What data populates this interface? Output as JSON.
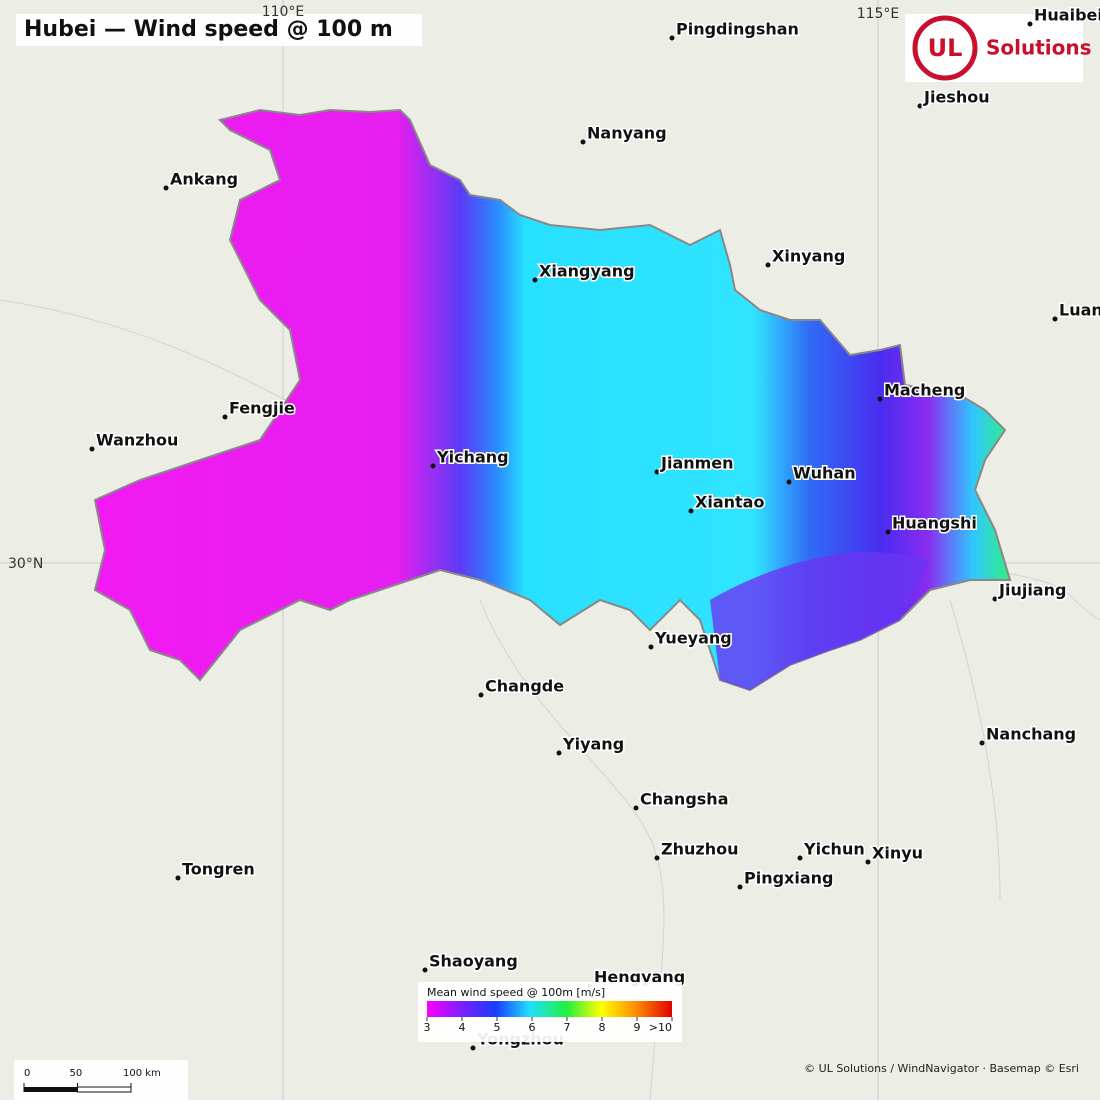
{
  "title": "Hubei — Wind speed @ 100 m",
  "graticule": {
    "lon_labels": [
      "110°E",
      "115°E"
    ],
    "lat_labels": [
      "30°N"
    ]
  },
  "logo": {
    "mark": "UL",
    "text": "Solutions"
  },
  "cities": [
    "Pingdingshan",
    "Huaibei",
    "Jieshou",
    "Nanyang",
    "Ankang",
    "Xiangyang",
    "Xinyang",
    "Luan",
    "Macheng",
    "Fengjie",
    "Wanzhou",
    "Yichang",
    "Jianmen",
    "Wuhan",
    "Xiantao",
    "Huangshi",
    "Jiujiang",
    "Yueyang",
    "Changde",
    "Yiyang",
    "Nanchang",
    "Changsha",
    "Zhuzhou",
    "Yichun",
    "Xinyu",
    "Tongren",
    "Pingxiang",
    "Shaoyang",
    "Hengyang",
    "Yongzhou"
  ],
  "legend": {
    "title": "Mean wind speed @ 100m  [m/s]",
    "ticks": [
      3,
      4,
      5,
      6,
      7,
      8,
      9,
      {
        "value": 10,
        "label": ">10"
      }
    ]
  },
  "scale_bar": {
    "ticks": [
      0,
      50,
      {
        "value": 100,
        "label": "100 km"
      }
    ]
  },
  "attribution": "© UL Solutions / WindNavigator · Basemap © Esri"
}
